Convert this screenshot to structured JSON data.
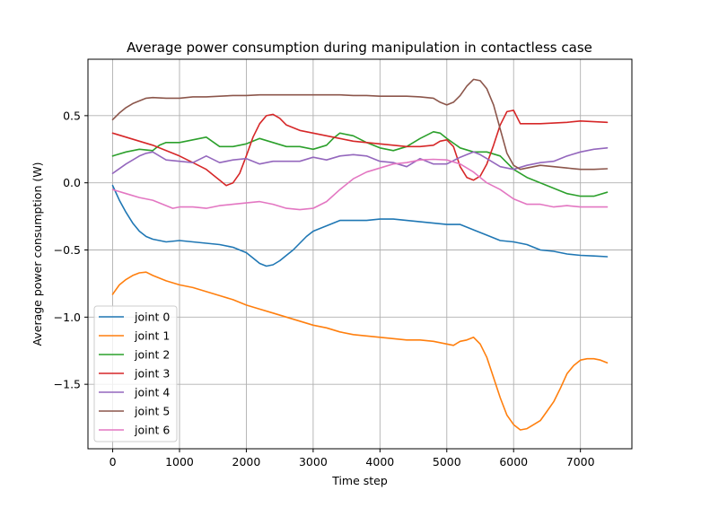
{
  "chart_data": {
    "type": "line",
    "title": "Average power consumption during manipulation in contactless case",
    "xlabel": "Time step",
    "ylabel": "Average power consumption (W)",
    "xlim": [
      -370,
      7770
    ],
    "ylim": [
      -1.98,
      0.92
    ],
    "xticks": [
      0,
      1000,
      2000,
      3000,
      4000,
      5000,
      6000,
      7000
    ],
    "yticks": [
      -1.5,
      -1.0,
      -0.5,
      0.0,
      0.5
    ],
    "xtick_labels": [
      "0",
      "1000",
      "2000",
      "3000",
      "4000",
      "5000",
      "6000",
      "7000"
    ],
    "ytick_labels": [
      "−1.5",
      "−1.0",
      "−0.5",
      "0.0",
      "0.5"
    ],
    "grid": true,
    "legend_position": "lower-left",
    "series": [
      {
        "name": "joint 0",
        "color": "#1f77b4",
        "x": [
          0,
          100,
          200,
          300,
          400,
          500,
          600,
          700,
          800,
          1000,
          1200,
          1400,
          1600,
          1800,
          2000,
          2100,
          2200,
          2300,
          2400,
          2500,
          2600,
          2700,
          2800,
          2900,
          3000,
          3200,
          3400,
          3600,
          3800,
          4000,
          4200,
          4400,
          4600,
          4800,
          5000,
          5200,
          5400,
          5600,
          5800,
          6000,
          6200,
          6400,
          6600,
          6800,
          7000,
          7200,
          7400
        ],
        "y": [
          -0.02,
          -0.13,
          -0.22,
          -0.3,
          -0.36,
          -0.4,
          -0.42,
          -0.43,
          -0.44,
          -0.43,
          -0.44,
          -0.45,
          -0.46,
          -0.48,
          -0.52,
          -0.56,
          -0.6,
          -0.62,
          -0.61,
          -0.58,
          -0.54,
          -0.5,
          -0.45,
          -0.4,
          -0.36,
          -0.32,
          -0.28,
          -0.28,
          -0.28,
          -0.27,
          -0.27,
          -0.28,
          -0.29,
          -0.3,
          -0.31,
          -0.31,
          -0.35,
          -0.39,
          -0.43,
          -0.44,
          -0.46,
          -0.5,
          -0.51,
          -0.53,
          -0.54,
          -0.545,
          -0.55
        ]
      },
      {
        "name": "joint 1",
        "color": "#ff7f0e",
        "x": [
          0,
          100,
          200,
          300,
          400,
          500,
          600,
          800,
          1000,
          1200,
          1400,
          1600,
          1800,
          2000,
          2200,
          2400,
          2600,
          2800,
          3000,
          3200,
          3400,
          3600,
          3800,
          4000,
          4200,
          4400,
          4600,
          4800,
          5000,
          5100,
          5200,
          5300,
          5400,
          5500,
          5600,
          5700,
          5800,
          5900,
          6000,
          6100,
          6200,
          6300,
          6400,
          6500,
          6600,
          6700,
          6800,
          6900,
          7000,
          7100,
          7200,
          7300,
          7400
        ],
        "y": [
          -0.83,
          -0.76,
          -0.72,
          -0.69,
          -0.67,
          -0.665,
          -0.69,
          -0.73,
          -0.76,
          -0.78,
          -0.81,
          -0.84,
          -0.87,
          -0.91,
          -0.94,
          -0.97,
          -1.0,
          -1.03,
          -1.06,
          -1.08,
          -1.11,
          -1.13,
          -1.14,
          -1.15,
          -1.16,
          -1.17,
          -1.17,
          -1.18,
          -1.2,
          -1.21,
          -1.18,
          -1.17,
          -1.15,
          -1.2,
          -1.3,
          -1.45,
          -1.6,
          -1.73,
          -1.8,
          -1.84,
          -1.83,
          -1.8,
          -1.77,
          -1.7,
          -1.63,
          -1.53,
          -1.42,
          -1.36,
          -1.32,
          -1.31,
          -1.31,
          -1.32,
          -1.34
        ]
      },
      {
        "name": "joint 2",
        "color": "#2ca02c",
        "x": [
          0,
          200,
          400,
          600,
          700,
          800,
          1000,
          1200,
          1400,
          1600,
          1800,
          2000,
          2200,
          2400,
          2600,
          2800,
          3000,
          3200,
          3300,
          3400,
          3600,
          3800,
          4000,
          4200,
          4400,
          4600,
          4800,
          4900,
          5000,
          5200,
          5400,
          5600,
          5800,
          6000,
          6200,
          6400,
          6600,
          6800,
          7000,
          7200,
          7400
        ],
        "y": [
          0.2,
          0.23,
          0.25,
          0.24,
          0.28,
          0.3,
          0.3,
          0.32,
          0.34,
          0.27,
          0.27,
          0.29,
          0.33,
          0.3,
          0.27,
          0.27,
          0.25,
          0.28,
          0.33,
          0.37,
          0.35,
          0.3,
          0.26,
          0.24,
          0.27,
          0.33,
          0.38,
          0.37,
          0.33,
          0.26,
          0.23,
          0.23,
          0.2,
          0.1,
          0.04,
          0.0,
          -0.04,
          -0.08,
          -0.1,
          -0.1,
          -0.07
        ]
      },
      {
        "name": "joint 3",
        "color": "#d62728",
        "x": [
          0,
          200,
          400,
          600,
          800,
          1000,
          1200,
          1400,
          1500,
          1600,
          1700,
          1800,
          1900,
          2000,
          2100,
          2200,
          2300,
          2400,
          2500,
          2600,
          2800,
          3000,
          3200,
          3400,
          3600,
          3800,
          4000,
          4200,
          4400,
          4600,
          4800,
          4900,
          5000,
          5100,
          5200,
          5300,
          5400,
          5500,
          5600,
          5700,
          5800,
          5900,
          6000,
          6100,
          6200,
          6400,
          6600,
          6800,
          7000,
          7200,
          7400
        ],
        "y": [
          0.37,
          0.34,
          0.31,
          0.28,
          0.24,
          0.2,
          0.15,
          0.1,
          0.06,
          0.02,
          -0.02,
          0.0,
          0.07,
          0.2,
          0.34,
          0.44,
          0.5,
          0.51,
          0.48,
          0.43,
          0.39,
          0.37,
          0.35,
          0.33,
          0.31,
          0.3,
          0.29,
          0.28,
          0.27,
          0.27,
          0.28,
          0.31,
          0.32,
          0.27,
          0.12,
          0.04,
          0.02,
          0.05,
          0.14,
          0.28,
          0.43,
          0.53,
          0.54,
          0.44,
          0.44,
          0.44,
          0.445,
          0.45,
          0.46,
          0.455,
          0.45
        ]
      },
      {
        "name": "joint 4",
        "color": "#9467bd",
        "x": [
          0,
          200,
          400,
          500,
          600,
          700,
          800,
          1000,
          1200,
          1400,
          1600,
          1800,
          2000,
          2200,
          2400,
          2600,
          2800,
          3000,
          3200,
          3400,
          3600,
          3800,
          4000,
          4200,
          4400,
          4600,
          4800,
          5000,
          5200,
          5300,
          5400,
          5500,
          5600,
          5800,
          6000,
          6200,
          6400,
          6600,
          6800,
          7000,
          7200,
          7400
        ],
        "y": [
          0.07,
          0.14,
          0.2,
          0.22,
          0.23,
          0.2,
          0.17,
          0.16,
          0.15,
          0.2,
          0.15,
          0.17,
          0.18,
          0.14,
          0.16,
          0.16,
          0.16,
          0.19,
          0.17,
          0.2,
          0.21,
          0.2,
          0.16,
          0.15,
          0.12,
          0.18,
          0.14,
          0.14,
          0.19,
          0.21,
          0.23,
          0.21,
          0.18,
          0.12,
          0.1,
          0.13,
          0.15,
          0.16,
          0.2,
          0.23,
          0.25,
          0.26
        ]
      },
      {
        "name": "joint 5",
        "color": "#8c564b",
        "x": [
          0,
          100,
          200,
          300,
          400,
          500,
          600,
          800,
          1000,
          1200,
          1400,
          1600,
          1800,
          2000,
          2200,
          2400,
          2600,
          2800,
          3000,
          3200,
          3400,
          3600,
          3800,
          4000,
          4200,
          4400,
          4600,
          4800,
          4900,
          5000,
          5100,
          5200,
          5300,
          5400,
          5500,
          5600,
          5700,
          5800,
          5900,
          6000,
          6100,
          6200,
          6400,
          6600,
          6800,
          7000,
          7200,
          7400
        ],
        "y": [
          0.47,
          0.52,
          0.56,
          0.59,
          0.61,
          0.63,
          0.635,
          0.63,
          0.63,
          0.64,
          0.64,
          0.645,
          0.65,
          0.65,
          0.655,
          0.655,
          0.655,
          0.655,
          0.655,
          0.655,
          0.655,
          0.65,
          0.65,
          0.645,
          0.645,
          0.645,
          0.64,
          0.63,
          0.6,
          0.58,
          0.6,
          0.65,
          0.72,
          0.77,
          0.76,
          0.7,
          0.58,
          0.4,
          0.22,
          0.13,
          0.1,
          0.11,
          0.13,
          0.12,
          0.11,
          0.1,
          0.1,
          0.105
        ]
      },
      {
        "name": "joint 6",
        "color": "#e377c2",
        "x": [
          0,
          200,
          400,
          600,
          800,
          900,
          1000,
          1200,
          1400,
          1600,
          1800,
          2000,
          2200,
          2400,
          2600,
          2800,
          3000,
          3200,
          3400,
          3600,
          3800,
          4000,
          4200,
          4400,
          4600,
          4800,
          5000,
          5200,
          5400,
          5600,
          5800,
          6000,
          6200,
          6400,
          6600,
          6800,
          7000,
          7200,
          7400
        ],
        "y": [
          -0.05,
          -0.08,
          -0.11,
          -0.13,
          -0.17,
          -0.19,
          -0.18,
          -0.18,
          -0.19,
          -0.17,
          -0.16,
          -0.15,
          -0.14,
          -0.16,
          -0.19,
          -0.2,
          -0.19,
          -0.14,
          -0.05,
          0.03,
          0.08,
          0.11,
          0.14,
          0.15,
          0.17,
          0.175,
          0.17,
          0.14,
          0.08,
          0.0,
          -0.05,
          -0.12,
          -0.16,
          -0.16,
          -0.18,
          -0.17,
          -0.18,
          -0.18,
          -0.18
        ]
      }
    ]
  }
}
